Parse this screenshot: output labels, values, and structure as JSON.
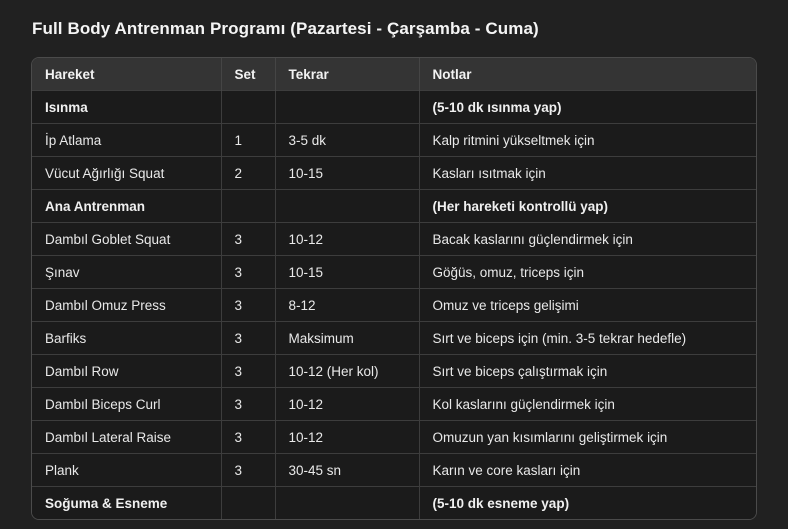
{
  "title": "Full Body Antrenman Programı (Pazartesi - Çarşamba - Cuma)",
  "colors": {
    "page_bg": "#212121",
    "table_bg": "#1b1b1b",
    "header_bg": "#343434",
    "grid_border": "#3d3d3d",
    "outer_border": "#4b4b4b",
    "text": "#e9e9e9",
    "title_text": "#f5f5f5"
  },
  "table": {
    "columns": [
      "Hareket",
      "Set",
      "Tekrar",
      "Notlar"
    ],
    "rows": [
      {
        "section": true,
        "cells": [
          "Isınma",
          "",
          "",
          "(5-10 dk ısınma yap)"
        ]
      },
      {
        "section": false,
        "cells": [
          "İp Atlama",
          "1",
          "3-5 dk",
          "Kalp ritmini yükseltmek için"
        ]
      },
      {
        "section": false,
        "cells": [
          "Vücut Ağırlığı Squat",
          "2",
          "10-15",
          "Kasları ısıtmak için"
        ]
      },
      {
        "section": true,
        "cells": [
          "Ana Antrenman",
          "",
          "",
          "(Her hareketi kontrollü yap)"
        ]
      },
      {
        "section": false,
        "cells": [
          "Dambıl Goblet Squat",
          "3",
          "10-12",
          "Bacak kaslarını güçlendirmek için"
        ]
      },
      {
        "section": false,
        "cells": [
          "Şınav",
          "3",
          "10-15",
          "Göğüs, omuz, triceps için"
        ]
      },
      {
        "section": false,
        "cells": [
          "Dambıl Omuz Press",
          "3",
          "8-12",
          "Omuz ve triceps gelişimi"
        ]
      },
      {
        "section": false,
        "cells": [
          "Barfiks",
          "3",
          "Maksimum",
          "Sırt ve biceps için (min. 3-5 tekrar hedefle)"
        ]
      },
      {
        "section": false,
        "cells": [
          "Dambıl Row",
          "3",
          "10-12 (Her kol)",
          "Sırt ve biceps çalıştırmak için"
        ]
      },
      {
        "section": false,
        "cells": [
          "Dambıl Biceps Curl",
          "3",
          "10-12",
          "Kol kaslarını güçlendirmek için"
        ]
      },
      {
        "section": false,
        "cells": [
          "Dambıl Lateral Raise",
          "3",
          "10-12",
          "Omuzun yan kısımlarını geliştirmek için"
        ]
      },
      {
        "section": false,
        "cells": [
          "Plank",
          "3",
          "30-45 sn",
          "Karın ve core kasları için"
        ]
      },
      {
        "section": true,
        "cells": [
          "Soğuma & Esneme",
          "",
          "",
          "(5-10 dk esneme yap)"
        ]
      }
    ]
  }
}
